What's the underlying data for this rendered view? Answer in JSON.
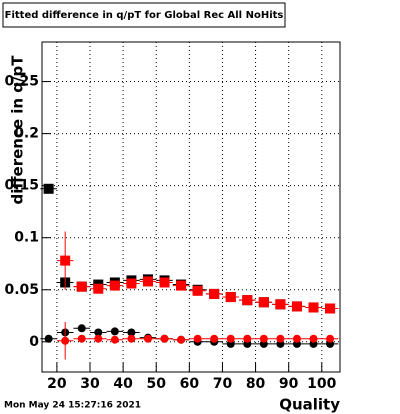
{
  "chart_data": {
    "type": "scatter",
    "title": "Fitted difference in q/pT for Global Rec All NoHits",
    "y_label": "difference in q/pT",
    "x_label": "Quality",
    "timestamp": "Mon May 24 15:27:16 2021",
    "x": [
      17.5,
      22.5,
      27.5,
      32.5,
      37.5,
      42.5,
      47.5,
      52.5,
      57.5,
      62.5,
      67.5,
      72.5,
      77.5,
      82.5,
      87.5,
      92.5,
      97.5,
      102.5
    ],
    "xerr": 2.5,
    "series": [
      {
        "color": "#000000",
        "marker": "square",
        "values": [
          0.147,
          0.057,
          0.053,
          0.055,
          0.057,
          0.059,
          0.06,
          0.059,
          0.055,
          0.05,
          0.046,
          0.043,
          0.04,
          0.038,
          0.036,
          0.034,
          0.033,
          0.032
        ]
      },
      {
        "color": "#ff0000",
        "marker": "square",
        "values": [
          null,
          0.078,
          0.053,
          0.051,
          0.054,
          0.056,
          0.058,
          0.057,
          0.054,
          0.049,
          0.046,
          0.043,
          0.04,
          0.038,
          0.036,
          0.034,
          0.033,
          0.032
        ],
        "errors": [
          null,
          0.028,
          0.002,
          0.002,
          0.002,
          0.002,
          0.002,
          0.002,
          0.002,
          0.002,
          0.002,
          0.002,
          0.002,
          0.002,
          0.002,
          0.002,
          0.002,
          0.002
        ]
      },
      {
        "color": "#000000",
        "marker": "circle",
        "values": [
          0.003,
          0.009,
          0.013,
          0.009,
          0.01,
          0.009,
          0.004,
          0.003,
          0.002,
          0.0,
          0.0,
          -0.002,
          -0.002,
          -0.002,
          -0.002,
          -0.002,
          -0.002,
          -0.002
        ]
      },
      {
        "color": "#ff0000",
        "marker": "circle",
        "values": [
          null,
          0.001,
          0.003,
          0.003,
          0.002,
          0.003,
          0.003,
          0.003,
          0.002,
          0.003,
          0.003,
          0.003,
          0.003,
          0.003,
          0.003,
          0.003,
          0.003,
          0.003
        ],
        "errors": [
          null,
          0.018,
          0.002,
          0.002,
          0.002,
          0.002,
          0.002,
          0.002,
          0.002,
          0.002,
          0.002,
          0.002,
          0.002,
          0.002,
          0.002,
          0.002,
          0.002,
          0.002
        ]
      }
    ],
    "xlim": [
      15.5,
      105.5
    ],
    "ylim": [
      -0.029,
      0.288
    ],
    "xticks": [
      20,
      30,
      40,
      50,
      60,
      70,
      80,
      90,
      100
    ],
    "yticks": [
      0,
      0.05,
      0.1,
      0.15,
      0.2,
      0.25
    ],
    "grid": true
  }
}
